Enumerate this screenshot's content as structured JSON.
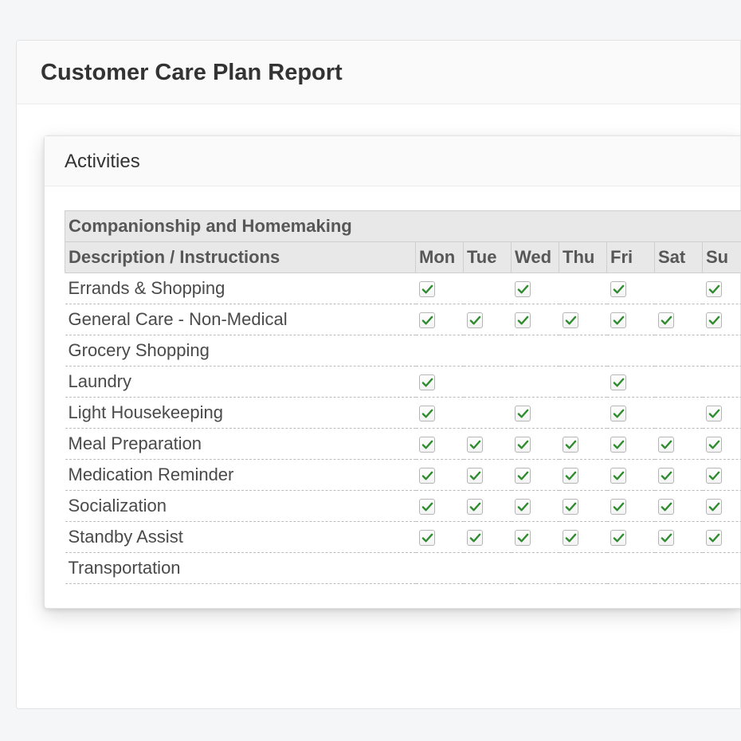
{
  "colors": {
    "page_bg": "#f5f6f8",
    "card_bg": "#ffffff",
    "card_border": "#e3e3e3",
    "header_bg": "#fafafa",
    "table_header_bg": "#e8e8e8",
    "table_header_border": "#cfcfcf",
    "row_divider": "#bdbdbd",
    "text_primary": "#333333",
    "text_muted": "#575757",
    "check_color": "#2e8b2e",
    "checkbox_border": "#b5b5b5"
  },
  "report": {
    "title": "Customer Care Plan Report"
  },
  "panel": {
    "title": "Activities"
  },
  "activities_table": {
    "section_title": "Companionship and Homemaking",
    "desc_header": "Description / Instructions",
    "days": [
      "Mon",
      "Tue",
      "Wed",
      "Thu",
      "Fri",
      "Sat",
      "Su"
    ],
    "rows": [
      {
        "label": "Errands & Shopping",
        "checks": [
          true,
          false,
          true,
          false,
          true,
          false,
          true
        ]
      },
      {
        "label": "General Care - Non-Medical",
        "checks": [
          true,
          true,
          true,
          true,
          true,
          true,
          true
        ]
      },
      {
        "label": "Grocery Shopping",
        "checks": [
          false,
          false,
          false,
          false,
          false,
          false,
          false
        ]
      },
      {
        "label": "Laundry",
        "checks": [
          true,
          false,
          false,
          false,
          true,
          false,
          false
        ]
      },
      {
        "label": "Light Housekeeping",
        "checks": [
          true,
          false,
          true,
          false,
          true,
          false,
          true
        ]
      },
      {
        "label": "Meal Preparation",
        "checks": [
          true,
          true,
          true,
          true,
          true,
          true,
          true
        ]
      },
      {
        "label": "Medication Reminder",
        "checks": [
          true,
          true,
          true,
          true,
          true,
          true,
          true
        ]
      },
      {
        "label": "Socialization",
        "checks": [
          true,
          true,
          true,
          true,
          true,
          true,
          true
        ]
      },
      {
        "label": "Standby Assist",
        "checks": [
          true,
          true,
          true,
          true,
          true,
          true,
          true
        ]
      },
      {
        "label": "Transportation",
        "checks": [
          false,
          false,
          false,
          false,
          false,
          false,
          false
        ]
      }
    ]
  }
}
